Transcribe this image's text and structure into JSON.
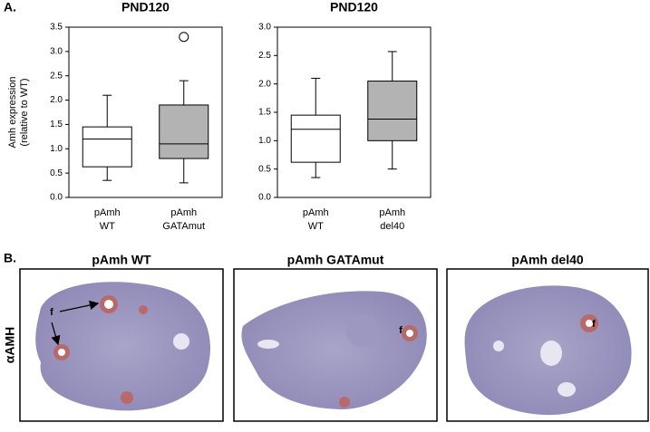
{
  "panel_label_a": "A.",
  "chart_data": [
    {
      "type": "box",
      "title": "PND120",
      "y_label": [
        "Amh expression",
        "(relative to WT)"
      ],
      "categories": [
        [
          "pAmh",
          "WT"
        ],
        [
          "pAmh",
          "GATAmut"
        ]
      ],
      "boxes": [
        {
          "min": 0.35,
          "q1": 0.63,
          "median": 1.2,
          "q3": 1.45,
          "max": 2.1,
          "outliers": []
        },
        {
          "min": 0.3,
          "q1": 0.8,
          "median": 1.1,
          "q3": 1.9,
          "max": 2.4,
          "outliers": [
            3.3
          ]
        }
      ],
      "colors": [
        "#ffffff",
        "#b3b3b3"
      ],
      "ylim": [
        0,
        3.5
      ],
      "yticks": [
        {
          "value": 0,
          "label": "0.0"
        },
        {
          "value": 0.5,
          "label": "0.5"
        },
        {
          "value": 1,
          "label": "1.0"
        },
        {
          "value": 1.5,
          "label": "1.5"
        },
        {
          "value": 2,
          "label": "2.0"
        },
        {
          "value": 2.5,
          "label": "2.5"
        },
        {
          "value": 3,
          "label": "3.0"
        },
        {
          "value": 3.5,
          "label": "3.5"
        }
      ]
    },
    {
      "type": "box",
      "title": "PND120",
      "categories": [
        [
          "pAmh",
          "WT"
        ],
        [
          "pAmh",
          "del40"
        ]
      ],
      "boxes": [
        {
          "min": 0.35,
          "q1": 0.62,
          "median": 1.2,
          "q3": 1.45,
          "max": 2.1,
          "outliers": []
        },
        {
          "min": 0.5,
          "q1": 1.0,
          "median": 1.38,
          "q3": 2.05,
          "max": 2.57,
          "outliers": []
        }
      ],
      "colors": [
        "#ffffff",
        "#b3b3b3"
      ],
      "ylim": [
        0,
        3
      ],
      "yticks": [
        {
          "value": 0,
          "label": "0.0"
        },
        {
          "value": 0.5,
          "label": "0.5"
        },
        {
          "value": 1,
          "label": "1.0"
        },
        {
          "value": 1.5,
          "label": "1.5"
        },
        {
          "value": 2,
          "label": "2.0"
        },
        {
          "value": 2.5,
          "label": "2.5"
        },
        {
          "value": 3,
          "label": "3.0"
        }
      ]
    }
  ],
  "figure_b": {
    "panel_label": "B.",
    "row_label": "αAMH",
    "panels": [
      {
        "title": "pAmh WT",
        "annotations": [
          "f"
        ]
      },
      {
        "title": "pAmh GATAmut",
        "annotations": [
          "f"
        ]
      },
      {
        "title": "pAmh del40",
        "annotations": [
          "f"
        ]
      }
    ]
  }
}
